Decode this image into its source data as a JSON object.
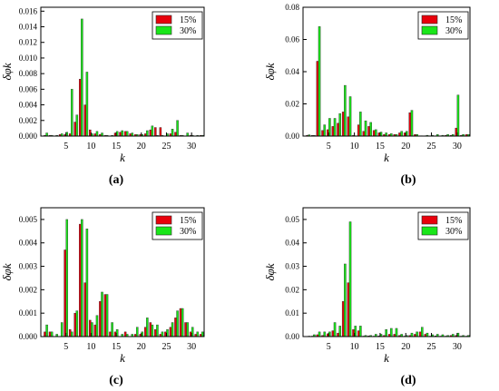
{
  "colors": {
    "series_15": "#e8000b",
    "series_30": "#19e619",
    "edge": "#2a2a2a"
  },
  "chart_data": [
    {
      "type": "bar",
      "panel_label": "(a)",
      "xlabel": "k",
      "ylabel": "δφk",
      "xlim": [
        0,
        32.5
      ],
      "ylim": [
        0,
        0.0165
      ],
      "xticks": [
        5,
        10,
        15,
        20,
        25,
        30
      ],
      "yticks": [
        0,
        0.002,
        0.004,
        0.006,
        0.008,
        0.01,
        0.012,
        0.014,
        0.016
      ],
      "ytick_labels": [
        "0.000",
        "0.002",
        "0.004",
        "0.006",
        "0.008",
        "0.010",
        "0.012",
        "0.014",
        "0.016"
      ],
      "legend": {
        "position": "top-right"
      },
      "x": [
        1,
        2,
        3,
        4,
        5,
        6,
        7,
        8,
        9,
        10,
        11,
        12,
        13,
        14,
        15,
        16,
        17,
        18,
        19,
        20,
        21,
        22,
        23,
        24,
        25,
        26,
        27,
        28,
        29,
        30,
        31,
        32
      ],
      "series": [
        {
          "name": "15%",
          "values": [
            0.0001,
            0.0001,
            0,
            0.0002,
            0.0002,
            0.0003,
            0.0018,
            0.0073,
            0.004,
            0.0008,
            0.0003,
            0.0002,
            0.0001,
            0,
            0.0004,
            0.0005,
            0.0006,
            0.0003,
            0.0002,
            0.0002,
            0.0003,
            0.0008,
            0.0011,
            0.0011,
            0,
            0.0003,
            0.0005,
            0.0001,
            0,
            0.0001,
            0,
            0.0001
          ]
        },
        {
          "name": "30%",
          "values": [
            0.0004,
            0.0001,
            0.0001,
            0.0003,
            0.0005,
            0.006,
            0.0027,
            0.015,
            0.0082,
            0.0003,
            0.0006,
            0.0004,
            0.0001,
            0.0001,
            0.0006,
            0.0007,
            0.0006,
            0.0004,
            0.0002,
            0.0002,
            0.0007,
            0.0013,
            0.0001,
            0.0001,
            0.0003,
            0.0009,
            0.002,
            0.0001,
            0.0004,
            0.0001,
            0.0001,
            0.0001
          ]
        }
      ]
    },
    {
      "type": "bar",
      "panel_label": "(b)",
      "xlabel": "k",
      "ylabel": "δφk",
      "xlim": [
        0,
        32.5
      ],
      "ylim": [
        0,
        0.08
      ],
      "xticks": [
        5,
        10,
        15,
        20,
        25,
        30
      ],
      "yticks": [
        0,
        0.02,
        0.04,
        0.06,
        0.08
      ],
      "ytick_labels": [
        "0.00",
        "0.02",
        "0.04",
        "0.06",
        "0.08"
      ],
      "legend": {
        "position": "top-right"
      },
      "x": [
        1,
        2,
        3,
        4,
        5,
        6,
        7,
        8,
        9,
        10,
        11,
        12,
        13,
        14,
        15,
        16,
        17,
        18,
        19,
        20,
        21,
        22,
        23,
        24,
        25,
        26,
        27,
        28,
        29,
        30,
        31,
        32
      ],
      "series": [
        {
          "name": "15%",
          "values": [
            0.0005,
            0.0004,
            0.0465,
            0.0035,
            0.004,
            0.006,
            0.008,
            0.015,
            0.012,
            0.0005,
            0.007,
            0.003,
            0.006,
            0.0035,
            0.002,
            0.001,
            0.001,
            0.001,
            0.002,
            0.002,
            0.0145,
            0.001,
            0.0002,
            0.0002,
            0.0002,
            0.0002,
            0.0002,
            0.0005,
            0.0005,
            0.005,
            0.0005,
            0.001
          ]
        },
        {
          "name": "30%",
          "values": [
            0.0008,
            0.0004,
            0.068,
            0.007,
            0.011,
            0.011,
            0.014,
            0.0315,
            0.0245,
            0.0002,
            0.015,
            0.0095,
            0.0085,
            0.004,
            0.0025,
            0.002,
            0.0015,
            0.001,
            0.003,
            0.003,
            0.016,
            0.001,
            0.0002,
            0.0005,
            0.0005,
            0.001,
            0.0005,
            0.001,
            0.001,
            0.0255,
            0.001,
            0.001
          ]
        }
      ]
    },
    {
      "type": "bar",
      "panel_label": "(c)",
      "xlabel": "k",
      "ylabel": "δφk",
      "xlim": [
        0,
        32.5
      ],
      "ylim": [
        0,
        0.0055
      ],
      "xticks": [
        5,
        10,
        15,
        20,
        25,
        30
      ],
      "yticks": [
        0,
        0.001,
        0.002,
        0.003,
        0.004,
        0.005
      ],
      "ytick_labels": [
        "0.000",
        "0.001",
        "0.002",
        "0.003",
        "0.004",
        "0.005"
      ],
      "legend": {
        "position": "top-right"
      },
      "x": [
        1,
        2,
        3,
        4,
        5,
        6,
        7,
        8,
        9,
        10,
        11,
        12,
        13,
        14,
        15,
        16,
        17,
        18,
        19,
        20,
        21,
        22,
        23,
        24,
        25,
        26,
        27,
        28,
        29,
        30,
        31,
        32
      ],
      "series": [
        {
          "name": "15%",
          "values": [
            0.0002,
            0.0002,
            0,
            0,
            0.0037,
            0.0003,
            0.001,
            0.0048,
            0.0023,
            0.0007,
            0.0005,
            0.0015,
            0.0018,
            0.0002,
            0.0002,
            0,
            0.0002,
            0,
            0.0001,
            0.0001,
            0.0004,
            0.0006,
            0.0003,
            0.0001,
            0.0002,
            0.0004,
            0.0008,
            0.0012,
            0.0006,
            0.0002,
            0.0001,
            0.0001
          ]
        },
        {
          "name": "30%",
          "values": [
            0.0005,
            0.0002,
            0.0001,
            0.0006,
            0.005,
            0.0002,
            0.0011,
            0.005,
            0.0046,
            0.0006,
            0.0009,
            0.0019,
            0.0018,
            0.0006,
            0.0003,
            0.0001,
            0.0001,
            0.0001,
            0.0004,
            0.0002,
            0.0008,
            0.0005,
            0.0005,
            0.0002,
            0.0003,
            0.0006,
            0.0011,
            0.0012,
            0.0006,
            0.0004,
            0.0002,
            0.0002
          ]
        }
      ]
    },
    {
      "type": "bar",
      "panel_label": "(d)",
      "xlabel": "k",
      "ylabel": "δφk",
      "xlim": [
        0,
        32.5
      ],
      "ylim": [
        0,
        0.055
      ],
      "xticks": [
        5,
        10,
        15,
        20,
        25,
        30
      ],
      "yticks": [
        0,
        0.01,
        0.02,
        0.03,
        0.04,
        0.05
      ],
      "ytick_labels": [
        "0.00",
        "0.01",
        "0.02",
        "0.03",
        "0.04",
        "0.05"
      ],
      "legend": {
        "position": "top-right"
      },
      "x": [
        1,
        2,
        3,
        4,
        5,
        6,
        7,
        8,
        9,
        10,
        11,
        12,
        13,
        14,
        15,
        16,
        17,
        18,
        19,
        20,
        21,
        22,
        23,
        24,
        25,
        26,
        27,
        28,
        29,
        30,
        31,
        32
      ],
      "series": [
        {
          "name": "15%",
          "values": [
            0,
            0.0002,
            0.0008,
            0.0005,
            0.0012,
            0.0025,
            0.0015,
            0.015,
            0.023,
            0.003,
            0.0025,
            0.0002,
            0.0003,
            0.0002,
            0.0003,
            0.0005,
            0.001,
            0.001,
            0.0005,
            0.0002,
            0.0005,
            0.001,
            0.002,
            0.001,
            0.0002,
            0.0003,
            0.0002,
            0.0002,
            0.0005,
            0.0005,
            0.0002,
            0.0002
          ]
        },
        {
          "name": "30%",
          "values": [
            0.0002,
            0.0008,
            0.002,
            0.002,
            0.002,
            0.006,
            0.0045,
            0.031,
            0.049,
            0.0045,
            0.0045,
            0.0005,
            0.0005,
            0.001,
            0.001,
            0.003,
            0.0035,
            0.0035,
            0.001,
            0.0005,
            0.0015,
            0.002,
            0.004,
            0.0015,
            0.0008,
            0.001,
            0.0008,
            0.0005,
            0.001,
            0.0015,
            0.0005,
            0.0005
          ]
        }
      ]
    }
  ]
}
